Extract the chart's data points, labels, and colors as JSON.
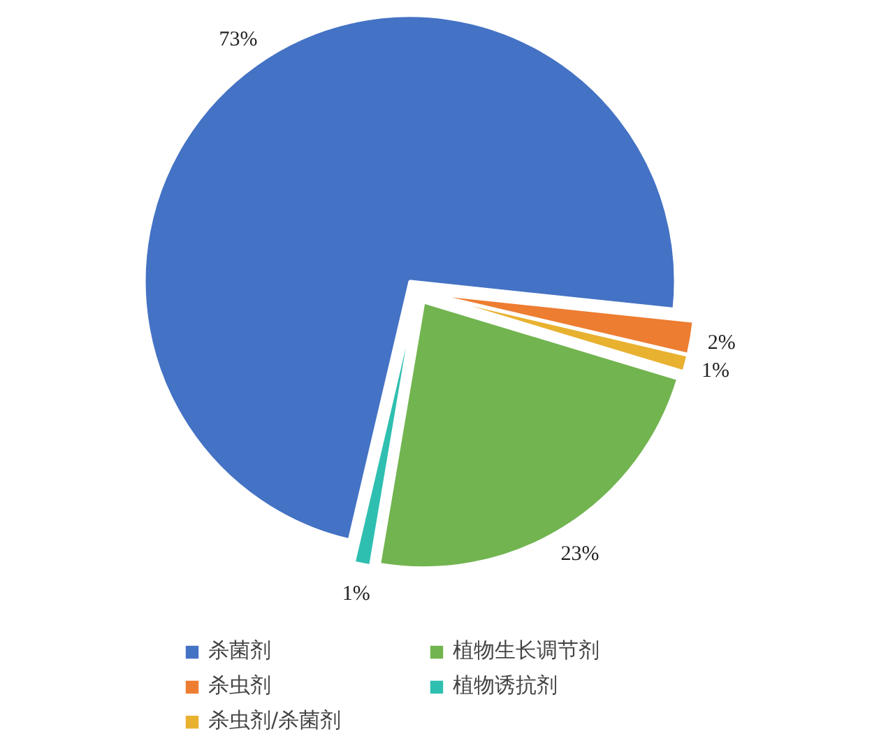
{
  "chart_data": {
    "type": "pie",
    "categories": [
      "杀菌剂",
      "杀虫剂",
      "杀虫剂/杀菌剂",
      "植物生长调节剂",
      "植物诱抗剂"
    ],
    "values": [
      73,
      2,
      1,
      23,
      1
    ],
    "colors": [
      "#4472c4",
      "#ed7d31",
      "#e8b130",
      "#72b450",
      "#2fbfb0"
    ],
    "value_labels": [
      "73%",
      "2%",
      "1%",
      "23%",
      "1%"
    ],
    "legend": "bottom"
  }
}
